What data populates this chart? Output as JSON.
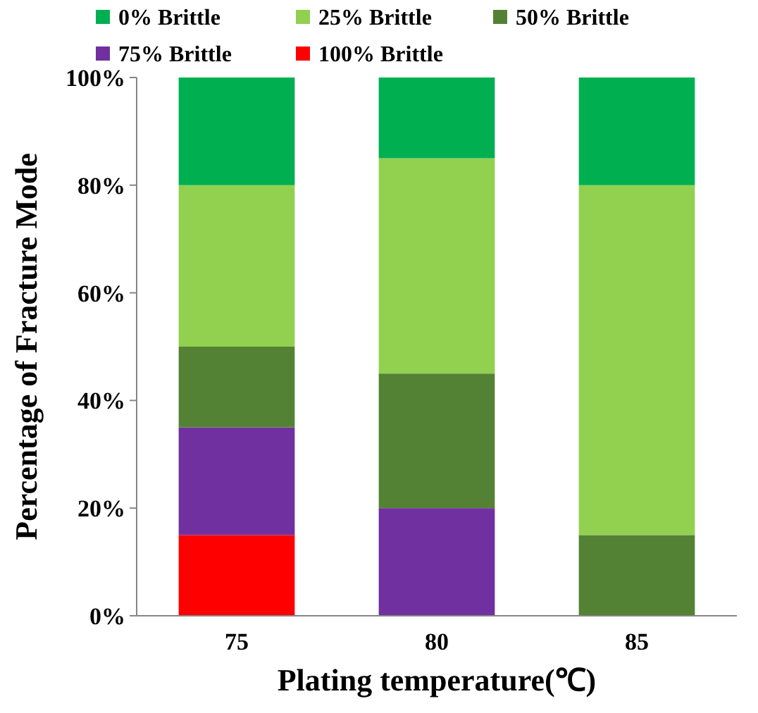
{
  "chart_data": {
    "type": "bar",
    "stacked": true,
    "xlabel": "Plating temperature(℃)",
    "ylabel": "Percentage of Fracture Mode",
    "categories": [
      "75",
      "80",
      "85"
    ],
    "series": [
      {
        "name": "100% Brittle",
        "color": "#ff0000",
        "values": [
          15,
          0,
          0
        ]
      },
      {
        "name": "75% Brittle",
        "color": "#7030a0",
        "values": [
          20,
          20,
          0
        ]
      },
      {
        "name": "50% Brittle",
        "color": "#548235",
        "values": [
          15,
          25,
          15
        ]
      },
      {
        "name": "25% Brittle",
        "color": "#92d050",
        "values": [
          30,
          40,
          65
        ]
      },
      {
        "name": "0% Brittle",
        "color": "#00b050",
        "values": [
          20,
          15,
          20
        ]
      }
    ],
    "ylim": [
      0,
      100
    ],
    "yticks": [
      {
        "value": 0,
        "label": "0%"
      },
      {
        "value": 20,
        "label": "20%"
      },
      {
        "value": 40,
        "label": "40%"
      },
      {
        "value": 60,
        "label": "60%"
      },
      {
        "value": 80,
        "label": "80%"
      },
      {
        "value": 100,
        "label": "100%"
      }
    ],
    "grid": false,
    "legend": "top"
  }
}
